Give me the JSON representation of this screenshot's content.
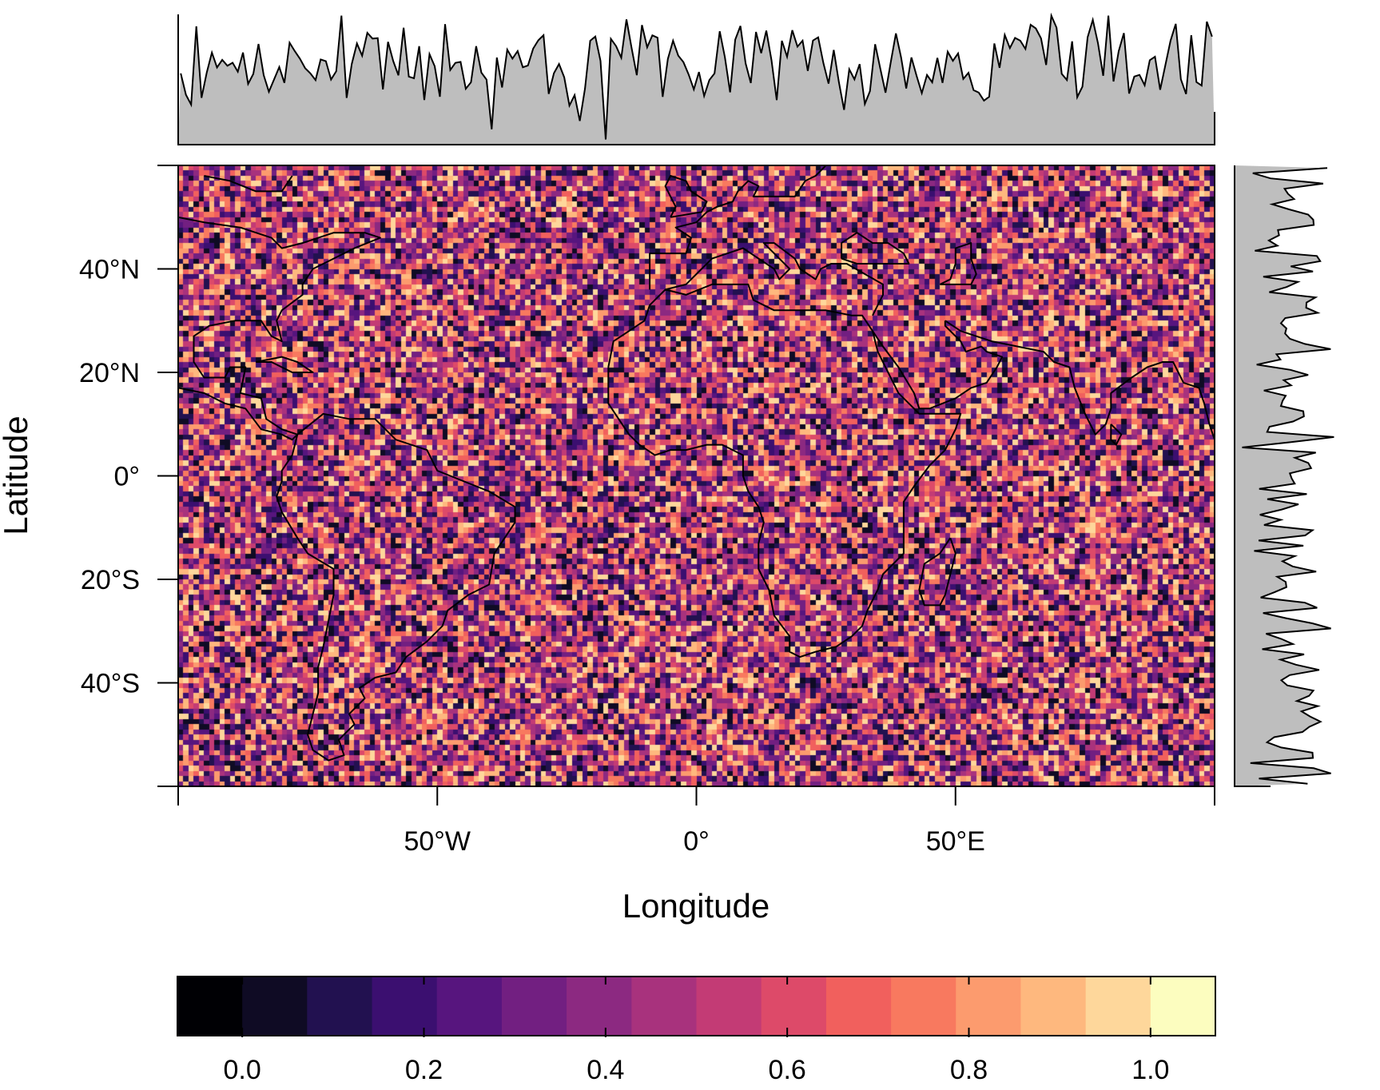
{
  "chart_data": {
    "type": "heatmap",
    "title": "",
    "xlabel": "Longitude",
    "ylabel": "Latitude",
    "xlim": [
      -100,
      100
    ],
    "ylim": [
      -60,
      60
    ],
    "x_ticks": [
      {
        "value": -50,
        "label": "50°W"
      },
      {
        "value": 0,
        "label": "0°"
      },
      {
        "value": 50,
        "label": "50°E"
      }
    ],
    "y_ticks": [
      {
        "value": 40,
        "label": "40°N"
      },
      {
        "value": 20,
        "label": "20°N"
      },
      {
        "value": 0,
        "label": "0°"
      },
      {
        "value": -20,
        "label": "20°S"
      },
      {
        "value": -40,
        "label": "40°S"
      }
    ],
    "grid_resolution_deg": 1,
    "value_range": [
      0,
      1
    ],
    "value_distribution": "uniform random noise",
    "overlay": "country boundary map lines",
    "marginal_top": "mean value per longitude column",
    "marginal_right": "mean value per latitude row",
    "colorbar": {
      "palette": "magma",
      "breaks": [
        -0.0714,
        0.0,
        0.0714,
        0.1429,
        0.2143,
        0.2857,
        0.3571,
        0.4286,
        0.5,
        0.5714,
        0.6429,
        0.7143,
        0.7857,
        0.8571,
        0.9286,
        1.0,
        1.0714
      ],
      "colors": [
        "#000004",
        "#0f0b24",
        "#221150",
        "#3b0f70",
        "#57157e",
        "#721f81",
        "#8c2981",
        "#a8327d",
        "#c33b75",
        "#dd4a69",
        "#f1605d",
        "#f8795f",
        "#fc9b6e",
        "#feb87e",
        "#fed79b",
        "#fcfdbf"
      ],
      "ticks": [
        {
          "value": 0.0,
          "label": "0.0"
        },
        {
          "value": 0.2,
          "label": "0.2"
        },
        {
          "value": 0.4,
          "label": "0.4"
        },
        {
          "value": 0.6,
          "label": "0.6"
        },
        {
          "value": 0.8,
          "label": "0.8"
        },
        {
          "value": 1.0,
          "label": "1.0"
        }
      ]
    }
  }
}
